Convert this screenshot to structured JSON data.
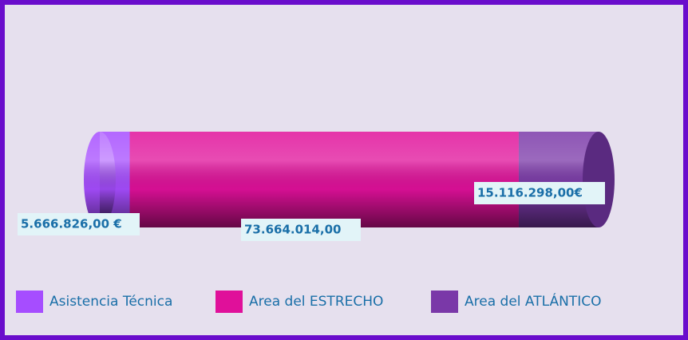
{
  "chart_data": {
    "type": "bar",
    "orientation": "horizontal",
    "stacked": true,
    "series": [
      {
        "name": "Asistencia Técnica",
        "color": "#a64dff",
        "values": [
          5666826
        ],
        "value_labels": [
          "5.666.826,00 €"
        ]
      },
      {
        "name": "Area del ESTRECHO",
        "color": "#e0109a",
        "values": [
          73664014
        ],
        "value_labels": [
          "73.664.014,00"
        ]
      },
      {
        "name": "Area del  ATLÁNTICO",
        "color": "#7a38a8",
        "values": [
          15116298
        ],
        "value_labels": [
          "15.116.298,00€"
        ]
      }
    ],
    "legend": "bottom"
  }
}
